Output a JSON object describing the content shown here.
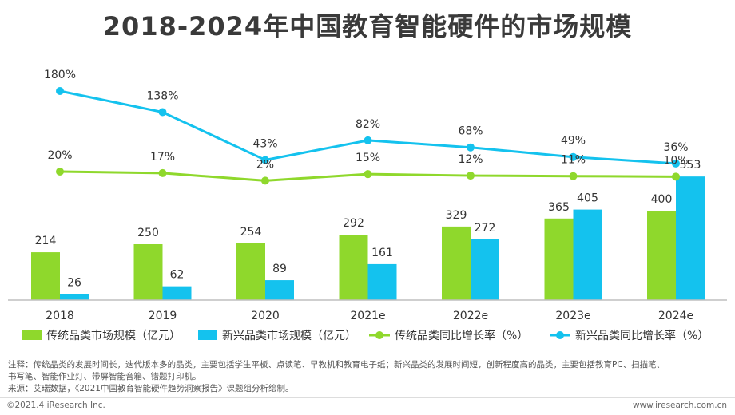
{
  "header": {
    "title": "2018-2024年中国教育智能硬件的市场规模"
  },
  "chart_data": {
    "type": "bar",
    "categories": [
      "2018",
      "2019",
      "2020",
      "2021e",
      "2022e",
      "2023e",
      "2024e"
    ],
    "series": [
      {
        "name": "传统品类市场规模（亿元）",
        "kind": "bar",
        "color": "#8fd82c",
        "values": [
          214,
          250,
          254,
          292,
          329,
          365,
          400
        ]
      },
      {
        "name": "新兴品类市场规模（亿元）",
        "kind": "bar",
        "color": "#14c2ee",
        "values": [
          26,
          62,
          89,
          161,
          272,
          405,
          553
        ]
      },
      {
        "name": "传统品类同比增长率（%）",
        "kind": "line",
        "color": "#8fd82c",
        "values": [
          20,
          17,
          2,
          15,
          12,
          11,
          10
        ],
        "labels": [
          "20%",
          "17%",
          "2%",
          "15%",
          "12%",
          "11%",
          "10%"
        ]
      },
      {
        "name": "新兴品类同比增长率（%）",
        "kind": "line",
        "color": "#14c2ee",
        "values": [
          180,
          138,
          43,
          82,
          68,
          49,
          36
        ],
        "labels": [
          "180%",
          "138%",
          "43%",
          "82%",
          "68%",
          "49%",
          "36%"
        ]
      }
    ],
    "bar_ylim": [
      0,
      1200
    ],
    "line_ylim": [
      -235,
      180
    ],
    "grid": false,
    "legend_position": "bottom"
  },
  "notes": {
    "line1": "注释：传统品类的发展时间长，迭代版本多的品类，主要包括学生平板、点读笔、早教机和教育电子纸；新兴品类的发展时间短，创新程度高的品类，主要包括教育PC、扫描笔、",
    "line2": "书写笔、智能作业灯、带屏智能音箱、错题打印机。",
    "line3": "来源：艾瑞数据，《2021中国教育智能硬件趋势洞察报告》课题组分析绘制。"
  },
  "footer": {
    "copyright": "©2021.4 iResearch Inc.",
    "website": "www.iresearch.com.cn"
  }
}
